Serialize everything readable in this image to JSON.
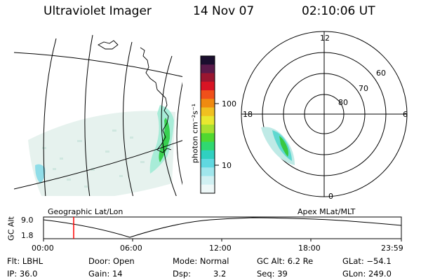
{
  "header": {
    "instrument": "Ultraviolet Imager",
    "date": "14 Nov 07",
    "time": "02:10:06 UT"
  },
  "colorbar": {
    "unit_label": "photon cm⁻²s⁻¹",
    "tick_labels": [
      "100",
      "10"
    ],
    "colors": [
      "#1a0e2e",
      "#5a1a4a",
      "#9a1630",
      "#d81424",
      "#f0501a",
      "#f08a10",
      "#f0c020",
      "#e8e830",
      "#a8e030",
      "#50d830",
      "#30d870",
      "#30d0c0",
      "#60d8e0",
      "#a0e6ec",
      "#d0f0f2",
      "#eef8f8"
    ]
  },
  "left_panel": {
    "caption": "Geographic Lat/Lon"
  },
  "right_panel": {
    "caption": "Apex MLat/MLT",
    "mlt_labels": {
      "top": "12",
      "left": "18",
      "right": "6",
      "bottom": "0"
    },
    "lat_labels": [
      "60",
      "70",
      "80"
    ]
  },
  "altitude_plot": {
    "axis_label": "GC Alt",
    "y_ticks": [
      "9.0",
      "1.8"
    ],
    "x_ticks": [
      "00:00",
      "06:00",
      "12:00",
      "18:00",
      "23:59"
    ],
    "marker_color": "#ff0000"
  },
  "info": {
    "filter": "Flt: LBHL",
    "ip": "IP: 36.0",
    "door": "Door: Open",
    "gain": "Gain: 14",
    "mode": "Mode: Normal",
    "dsp_label": "Dsp:",
    "dsp_value": "3.2",
    "gc_alt": "GC Alt: 6.2 Re",
    "seq": "Seq: 39",
    "glat": "GLat: −54.1",
    "glon": "GLon: 249.0"
  }
}
